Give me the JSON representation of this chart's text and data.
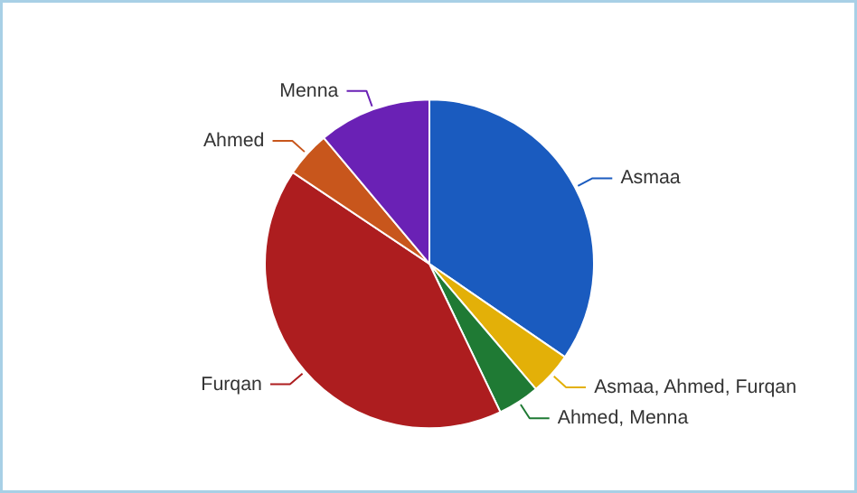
{
  "chart_data": {
    "type": "pie",
    "categories": [
      "Asmaa",
      "Asmaa, Ahmed, Furqan",
      "Ahmed, Menna",
      "Furqan",
      "Ahmed",
      "Menna"
    ],
    "values": [
      34.6,
      4.2,
      4.1,
      41.5,
      4.5,
      11.1
    ],
    "colors": [
      "#1a5bbf",
      "#e3b008",
      "#1f7a34",
      "#ad1d1f",
      "#c8561c",
      "#6a21b5"
    ]
  }
}
